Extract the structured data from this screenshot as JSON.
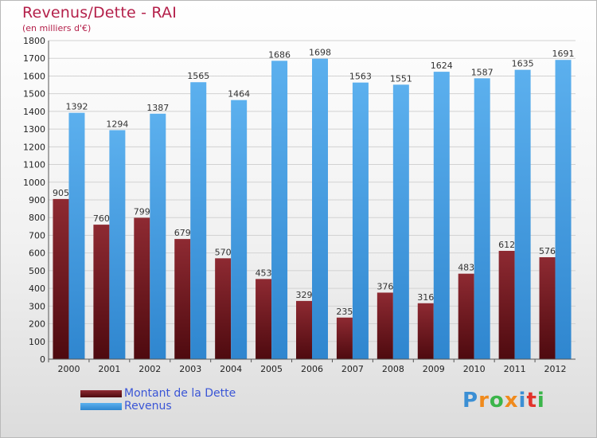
{
  "title": "Revenus/Dette - RAI",
  "subtitle": "(en milliers d'€)",
  "logo": {
    "text": "Proxiti",
    "letters": [
      {
        "ch": "P",
        "color": "#3b8fd4"
      },
      {
        "ch": "r",
        "color": "#f08a1c"
      },
      {
        "ch": "o",
        "color": "#3bb54a"
      },
      {
        "ch": "x",
        "color": "#f08a1c"
      },
      {
        "ch": "i",
        "color": "#3b8fd4"
      },
      {
        "ch": "t",
        "color": "#e2332b"
      },
      {
        "ch": "i",
        "color": "#3bb54a"
      }
    ]
  },
  "chart_data": {
    "type": "bar",
    "title": "Revenus/Dette - RAI",
    "subtitle": "(en milliers d'€)",
    "categories": [
      "2000",
      "2001",
      "2002",
      "2003",
      "2004",
      "2005",
      "2006",
      "2007",
      "2008",
      "2009",
      "2010",
      "2011",
      "2012"
    ],
    "series": [
      {
        "name": "Montant de la Dette",
        "color": "#7a1c22",
        "values": [
          905,
          760,
          799,
          679,
          570,
          453,
          329,
          235,
          376,
          316,
          483,
          612,
          576
        ]
      },
      {
        "name": "Revenus",
        "color": "#4aa3e6",
        "values": [
          1392,
          1294,
          1387,
          1565,
          1464,
          1686,
          1698,
          1563,
          1551,
          1624,
          1587,
          1635,
          1691
        ]
      }
    ],
    "ylim": [
      0,
      1800
    ],
    "yticks": [
      0,
      100,
      200,
      300,
      400,
      500,
      600,
      700,
      800,
      900,
      1000,
      1100,
      1200,
      1300,
      1400,
      1500,
      1600,
      1700,
      1800
    ],
    "grid": true,
    "legend_position": "bottom-left"
  }
}
